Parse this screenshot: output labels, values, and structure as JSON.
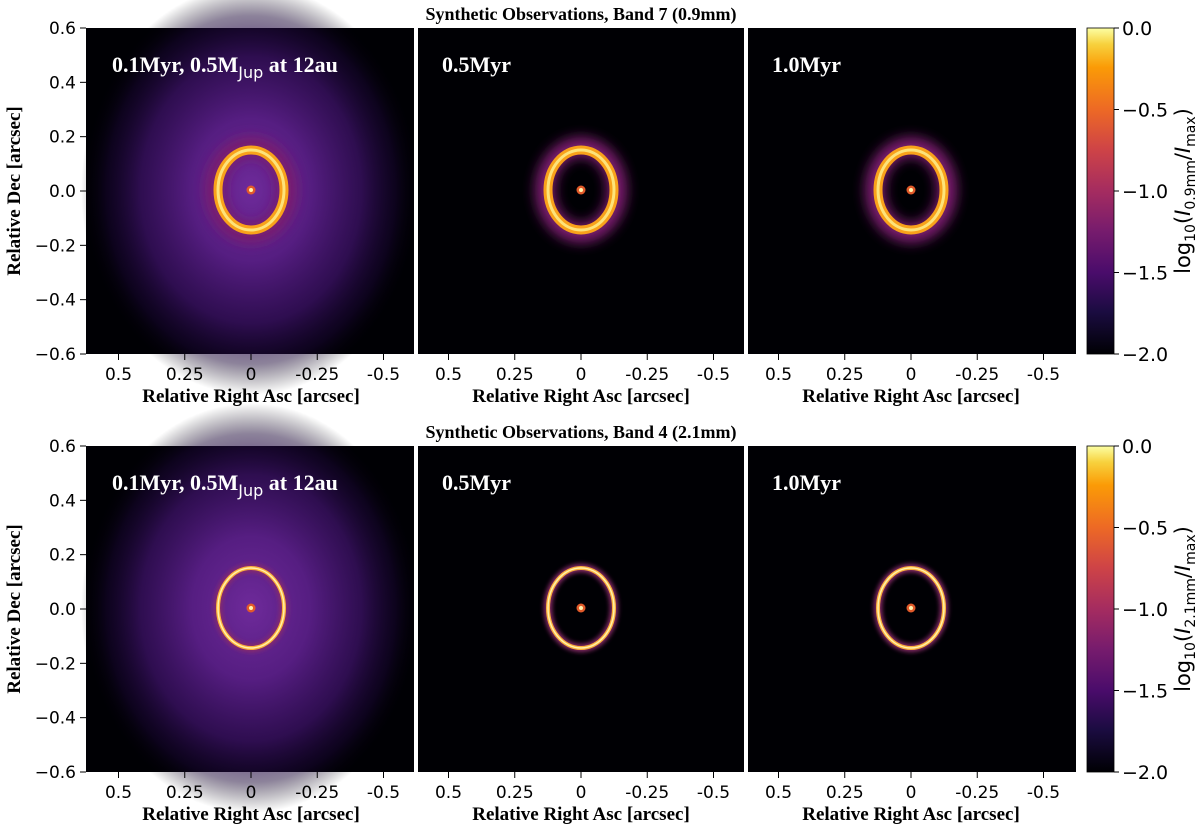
{
  "chart_data": [
    {
      "type": "heatmap",
      "title": "Synthetic Observations, Band 7 (0.9mm)",
      "ylabel": "Relative Dec [arcsec]",
      "yticks": [
        "0.6",
        "0.4",
        "0.2",
        "0.0",
        "−0.2",
        "−0.4",
        "−0.6"
      ],
      "colorbar": {
        "label_parts": [
          "log",
          "10",
          "(",
          "I",
          "0.9mm",
          "/",
          "I",
          "max",
          ")"
        ],
        "ticks": [
          "0.0",
          "−0.5",
          "−1.0",
          "−1.5",
          "−2.0"
        ],
        "range": [
          -2.0,
          0.0
        ]
      },
      "panels": [
        {
          "label_main": "0.1Myr, 0.5M",
          "label_sub": "Jup",
          "label_tail": " at 12au",
          "xlabel": "Relative Right Asc [arcsec]",
          "xticks": [
            "0.5",
            "0.25",
            "0",
            "-0.25",
            "-0.5"
          ],
          "ring": "wide",
          "halo": true
        },
        {
          "label_main": "0.5Myr",
          "label_sub": "",
          "label_tail": "",
          "xlabel": "Relative Right Asc [arcsec]",
          "xticks": [
            "0.5",
            "0.25",
            "0",
            "-0.25",
            "-0.5"
          ],
          "ring": "wide",
          "halo": false
        },
        {
          "label_main": "1.0Myr",
          "label_sub": "",
          "label_tail": "",
          "xlabel": "Relative Right Asc [arcsec]",
          "xticks": [
            "0.5",
            "0.25",
            "0",
            "-0.25",
            "-0.5"
          ],
          "ring": "wide",
          "halo": false
        }
      ]
    },
    {
      "type": "heatmap",
      "title": "Synthetic Observations, Band 4 (2.1mm)",
      "ylabel": "Relative Dec [arcsec]",
      "yticks": [
        "0.6",
        "0.4",
        "0.2",
        "0.0",
        "−0.2",
        "−0.4",
        "−0.6"
      ],
      "colorbar": {
        "label_parts": [
          "log",
          "10",
          "(",
          "I",
          "2.1mm",
          "/",
          "I",
          "max",
          ")"
        ],
        "ticks": [
          "0.0",
          "−0.5",
          "−1.0",
          "−1.5",
          "−2.0"
        ],
        "range": [
          -2.0,
          0.0
        ]
      },
      "panels": [
        {
          "label_main": "0.1Myr, 0.5M",
          "label_sub": "Jup",
          "label_tail": " at 12au",
          "xlabel": "Relative Right Asc [arcsec]",
          "xticks": [
            "0.5",
            "0.25",
            "0",
            "-0.25",
            "-0.5"
          ],
          "ring": "thin",
          "halo": true
        },
        {
          "label_main": "0.5Myr",
          "label_sub": "",
          "label_tail": "",
          "xlabel": "Relative Right Asc [arcsec]",
          "xticks": [
            "0.5",
            "0.25",
            "0",
            "-0.25",
            "-0.5"
          ],
          "ring": "thin",
          "halo": false
        },
        {
          "label_main": "1.0Myr",
          "label_sub": "",
          "label_tail": "",
          "xlabel": "Relative Right Asc [arcsec]",
          "xticks": [
            "0.5",
            "0.25",
            "0",
            "-0.25",
            "-0.5"
          ],
          "ring": "thin",
          "halo": false
        }
      ]
    }
  ]
}
